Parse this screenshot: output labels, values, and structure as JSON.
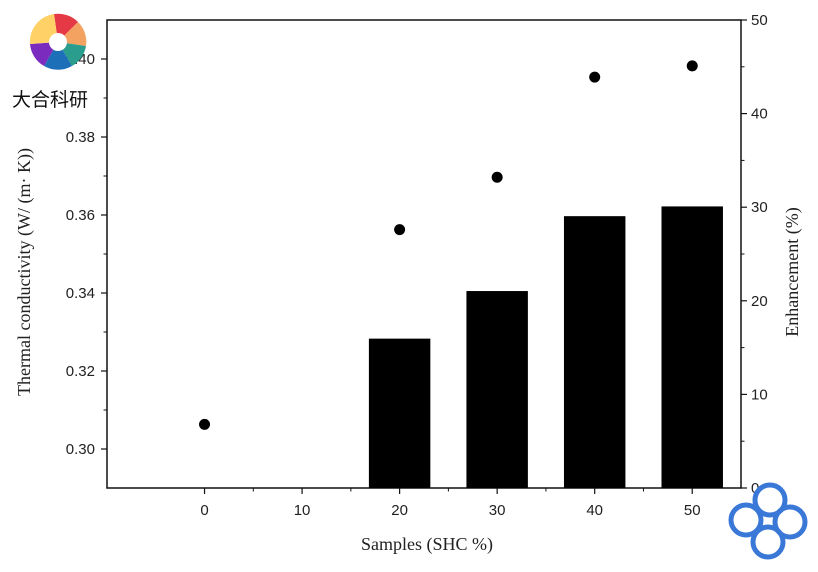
{
  "watermark": {
    "text": "大合科研"
  },
  "chart_data": {
    "type": "bar",
    "xlabel": "Samples (SHC %)",
    "ylabel": "Thermal conductivity (W/ (m· K))",
    "y2label": "Enhancement (%)",
    "categories": [
      "0",
      "10",
      "20",
      "30",
      "40",
      "50"
    ],
    "x": [
      0,
      10,
      20,
      30,
      40,
      50
    ],
    "xlim": [
      -10,
      55
    ],
    "ylim": [
      0.29,
      0.41
    ],
    "y2lim": [
      0,
      50
    ],
    "yticks": [
      0.3,
      0.32,
      0.34,
      0.36,
      0.38,
      0.4
    ],
    "y2ticks": [
      0,
      10,
      20,
      30,
      40,
      50
    ],
    "series": [
      {
        "type": "bar",
        "axis": "left",
        "values": [
          null,
          null,
          0.3283,
          0.3405,
          0.3597,
          0.3622
        ]
      },
      {
        "type": "scatter",
        "axis": "right",
        "values": [
          6.8,
          null,
          27.6,
          33.2,
          43.9,
          45.1
        ]
      }
    ],
    "grid": false,
    "legend": "none"
  }
}
